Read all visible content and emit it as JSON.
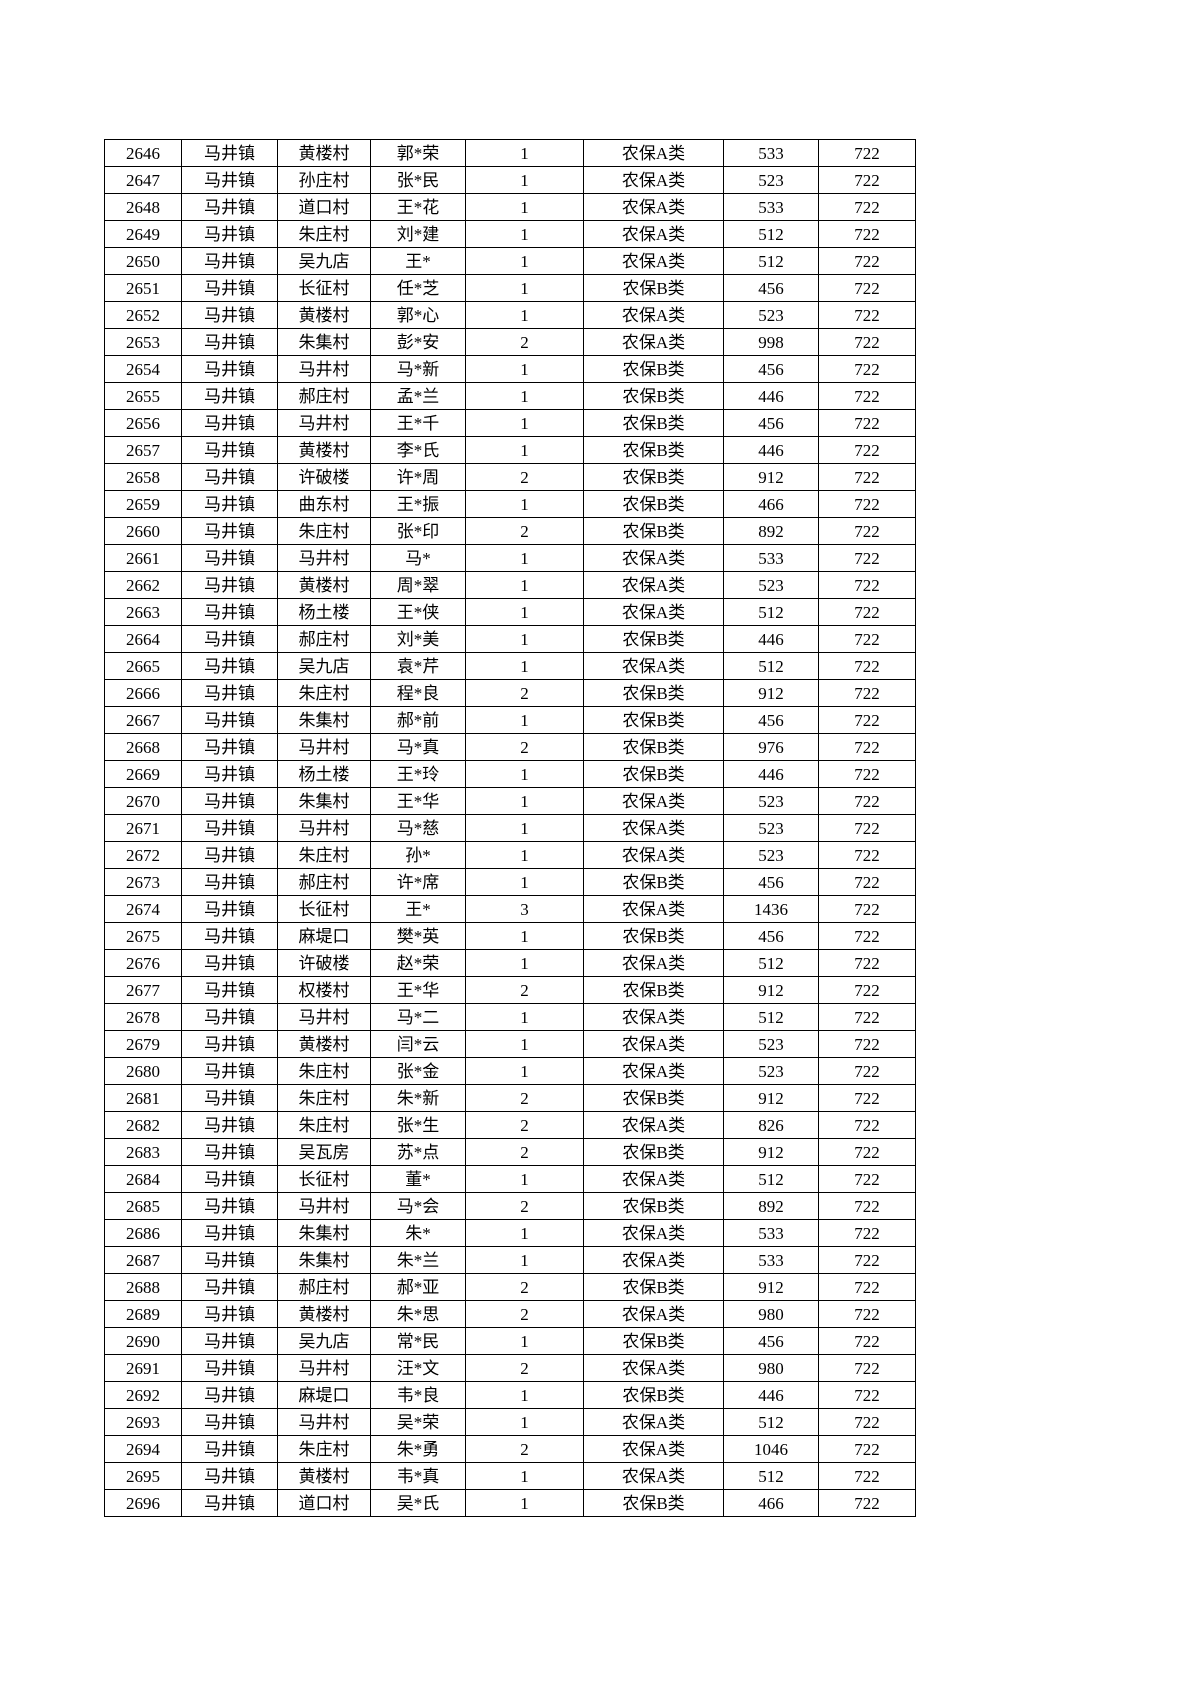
{
  "page": {
    "background_color": "#ffffff",
    "grid_color": "#000000",
    "text_color": "#000000"
  },
  "table": {
    "column_keys": [
      "serial",
      "town",
      "village",
      "name",
      "persons",
      "category",
      "amount",
      "standard"
    ],
    "rows": [
      [
        "2646",
        "马井镇",
        "黄楼村",
        "郭*荣",
        "1",
        "农保A类",
        "533",
        "722"
      ],
      [
        "2647",
        "马井镇",
        "孙庄村",
        "张*民",
        "1",
        "农保A类",
        "523",
        "722"
      ],
      [
        "2648",
        "马井镇",
        "道口村",
        "王*花",
        "1",
        "农保A类",
        "533",
        "722"
      ],
      [
        "2649",
        "马井镇",
        "朱庄村",
        "刘*建",
        "1",
        "农保A类",
        "512",
        "722"
      ],
      [
        "2650",
        "马井镇",
        "吴九店",
        "王*",
        "1",
        "农保A类",
        "512",
        "722"
      ],
      [
        "2651",
        "马井镇",
        "长征村",
        "任*芝",
        "1",
        "农保B类",
        "456",
        "722"
      ],
      [
        "2652",
        "马井镇",
        "黄楼村",
        "郭*心",
        "1",
        "农保A类",
        "523",
        "722"
      ],
      [
        "2653",
        "马井镇",
        "朱集村",
        "彭*安",
        "2",
        "农保A类",
        "998",
        "722"
      ],
      [
        "2654",
        "马井镇",
        "马井村",
        "马*新",
        "1",
        "农保B类",
        "456",
        "722"
      ],
      [
        "2655",
        "马井镇",
        "郝庄村",
        "孟*兰",
        "1",
        "农保B类",
        "446",
        "722"
      ],
      [
        "2656",
        "马井镇",
        "马井村",
        "王*千",
        "1",
        "农保B类",
        "456",
        "722"
      ],
      [
        "2657",
        "马井镇",
        "黄楼村",
        "李*氏",
        "1",
        "农保B类",
        "446",
        "722"
      ],
      [
        "2658",
        "马井镇",
        "许破楼",
        "许*周",
        "2",
        "农保B类",
        "912",
        "722"
      ],
      [
        "2659",
        "马井镇",
        "曲东村",
        "王*振",
        "1",
        "农保B类",
        "466",
        "722"
      ],
      [
        "2660",
        "马井镇",
        "朱庄村",
        "张*印",
        "2",
        "农保B类",
        "892",
        "722"
      ],
      [
        "2661",
        "马井镇",
        "马井村",
        "马*",
        "1",
        "农保A类",
        "533",
        "722"
      ],
      [
        "2662",
        "马井镇",
        "黄楼村",
        "周*翠",
        "1",
        "农保A类",
        "523",
        "722"
      ],
      [
        "2663",
        "马井镇",
        "杨土楼",
        "王*侠",
        "1",
        "农保A类",
        "512",
        "722"
      ],
      [
        "2664",
        "马井镇",
        "郝庄村",
        "刘*美",
        "1",
        "农保B类",
        "446",
        "722"
      ],
      [
        "2665",
        "马井镇",
        "吴九店",
        "袁*芹",
        "1",
        "农保A类",
        "512",
        "722"
      ],
      [
        "2666",
        "马井镇",
        "朱庄村",
        "程*良",
        "2",
        "农保B类",
        "912",
        "722"
      ],
      [
        "2667",
        "马井镇",
        "朱集村",
        "郝*前",
        "1",
        "农保B类",
        "456",
        "722"
      ],
      [
        "2668",
        "马井镇",
        "马井村",
        "马*真",
        "2",
        "农保B类",
        "976",
        "722"
      ],
      [
        "2669",
        "马井镇",
        "杨土楼",
        "王*玲",
        "1",
        "农保B类",
        "446",
        "722"
      ],
      [
        "2670",
        "马井镇",
        "朱集村",
        "王*华",
        "1",
        "农保A类",
        "523",
        "722"
      ],
      [
        "2671",
        "马井镇",
        "马井村",
        "马*慈",
        "1",
        "农保A类",
        "523",
        "722"
      ],
      [
        "2672",
        "马井镇",
        "朱庄村",
        "孙*",
        "1",
        "农保A类",
        "523",
        "722"
      ],
      [
        "2673",
        "马井镇",
        "郝庄村",
        "许*席",
        "1",
        "农保B类",
        "456",
        "722"
      ],
      [
        "2674",
        "马井镇",
        "长征村",
        "王*",
        "3",
        "农保A类",
        "1436",
        "722"
      ],
      [
        "2675",
        "马井镇",
        "麻堤口",
        "樊*英",
        "1",
        "农保B类",
        "456",
        "722"
      ],
      [
        "2676",
        "马井镇",
        "许破楼",
        "赵*荣",
        "1",
        "农保A类",
        "512",
        "722"
      ],
      [
        "2677",
        "马井镇",
        "权楼村",
        "王*华",
        "2",
        "农保B类",
        "912",
        "722"
      ],
      [
        "2678",
        "马井镇",
        "马井村",
        "马*二",
        "1",
        "农保A类",
        "512",
        "722"
      ],
      [
        "2679",
        "马井镇",
        "黄楼村",
        "闫*云",
        "1",
        "农保A类",
        "523",
        "722"
      ],
      [
        "2680",
        "马井镇",
        "朱庄村",
        "张*金",
        "1",
        "农保A类",
        "523",
        "722"
      ],
      [
        "2681",
        "马井镇",
        "朱庄村",
        "朱*新",
        "2",
        "农保B类",
        "912",
        "722"
      ],
      [
        "2682",
        "马井镇",
        "朱庄村",
        "张*生",
        "2",
        "农保A类",
        "826",
        "722"
      ],
      [
        "2683",
        "马井镇",
        "吴瓦房",
        "苏*点",
        "2",
        "农保B类",
        "912",
        "722"
      ],
      [
        "2684",
        "马井镇",
        "长征村",
        "董*",
        "1",
        "农保A类",
        "512",
        "722"
      ],
      [
        "2685",
        "马井镇",
        "马井村",
        "马*会",
        "2",
        "农保B类",
        "892",
        "722"
      ],
      [
        "2686",
        "马井镇",
        "朱集村",
        "朱*",
        "1",
        "农保A类",
        "533",
        "722"
      ],
      [
        "2687",
        "马井镇",
        "朱集村",
        "朱*兰",
        "1",
        "农保A类",
        "533",
        "722"
      ],
      [
        "2688",
        "马井镇",
        "郝庄村",
        "郝*亚",
        "2",
        "农保B类",
        "912",
        "722"
      ],
      [
        "2689",
        "马井镇",
        "黄楼村",
        "朱*思",
        "2",
        "农保A类",
        "980",
        "722"
      ],
      [
        "2690",
        "马井镇",
        "吴九店",
        "常*民",
        "1",
        "农保B类",
        "456",
        "722"
      ],
      [
        "2691",
        "马井镇",
        "马井村",
        "汪*文",
        "2",
        "农保A类",
        "980",
        "722"
      ],
      [
        "2692",
        "马井镇",
        "麻堤口",
        "韦*良",
        "1",
        "农保B类",
        "446",
        "722"
      ],
      [
        "2693",
        "马井镇",
        "马井村",
        "吴*荣",
        "1",
        "农保A类",
        "512",
        "722"
      ],
      [
        "2694",
        "马井镇",
        "朱庄村",
        "朱*勇",
        "2",
        "农保A类",
        "1046",
        "722"
      ],
      [
        "2695",
        "马井镇",
        "黄楼村",
        "韦*真",
        "1",
        "农保A类",
        "512",
        "722"
      ],
      [
        "2696",
        "马井镇",
        "道口村",
        "吴*氏",
        "1",
        "农保B类",
        "466",
        "722"
      ]
    ]
  }
}
